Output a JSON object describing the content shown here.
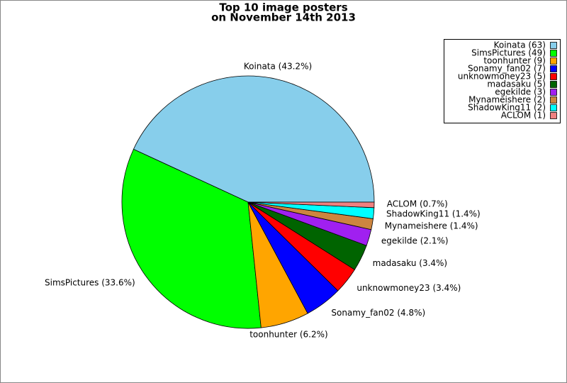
{
  "chart_data": {
    "type": "pie",
    "title": "Top 10 image posters",
    "subtitle": "on November 14th 2013",
    "categories": [
      "Koinata",
      "SimsPictures",
      "toonhunter",
      "Sonamy_fan02",
      "unknowmoney23",
      "madasaku",
      "egekilde",
      "Mynameishere",
      "ShadowKing11",
      "ACLOM"
    ],
    "values": [
      43.2,
      33.6,
      6.2,
      4.8,
      3.4,
      3.4,
      2.1,
      1.4,
      1.4,
      0.7
    ],
    "value_labels": [
      "Koinata (43.2%)",
      "SimsPictures (33.6%)",
      "toonhunter (6.2%)",
      "Sonamy_fan02 (4.8%)",
      "unknowmoney23 (3.4%)",
      "madasaku (3.4%)",
      "egekilde (2.1%)",
      "Mynameishere (1.4%)",
      "ShadowKing11 (1.4%)",
      "ACLOM (0.7%)"
    ],
    "legend_labels": [
      "Koinata (63)",
      "SimsPictures (49)",
      "toonhunter (9)",
      "Sonamy_fan02 (7)",
      "unknowmoney23 (5)",
      "madasaku (5)",
      "egekilde (3)",
      "Mynameishere (2)",
      "ShadowKing11 (2)",
      "ACLOM (1)"
    ],
    "colors": [
      "#87ceeb",
      "#00ff00",
      "#ffa500",
      "#0000ff",
      "#ff0000",
      "#006400",
      "#a020f0",
      "#cd853f",
      "#00ffff",
      "#f08080"
    ],
    "legend": "upper right"
  }
}
